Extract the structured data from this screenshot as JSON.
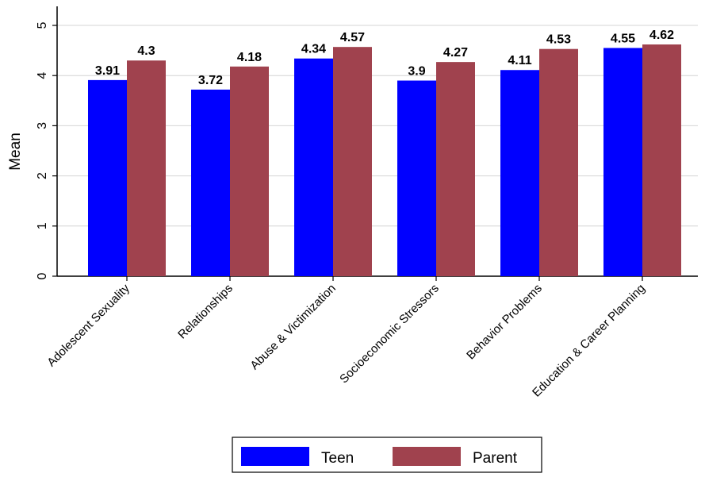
{
  "chart_data": {
    "type": "bar",
    "title": "",
    "xlabel": "",
    "ylabel": "Mean",
    "ylim": [
      0,
      5
    ],
    "yticks": [
      0,
      1,
      2,
      3,
      4,
      5
    ],
    "grid": true,
    "legend_position": "bottom",
    "categories": [
      "Adolescent Sexuality",
      "Relationships",
      "Abuse & Victimization",
      "Socioeconomic Stressors",
      "Behavior Problems",
      "Education & Career Planning"
    ],
    "series": [
      {
        "name": "Teen",
        "color": "#0000ff",
        "values": [
          3.91,
          3.72,
          4.34,
          3.9,
          4.11,
          4.55
        ]
      },
      {
        "name": "Parent",
        "color": "#a0424e",
        "values": [
          4.3,
          4.18,
          4.57,
          4.27,
          4.53,
          4.62
        ]
      }
    ]
  }
}
